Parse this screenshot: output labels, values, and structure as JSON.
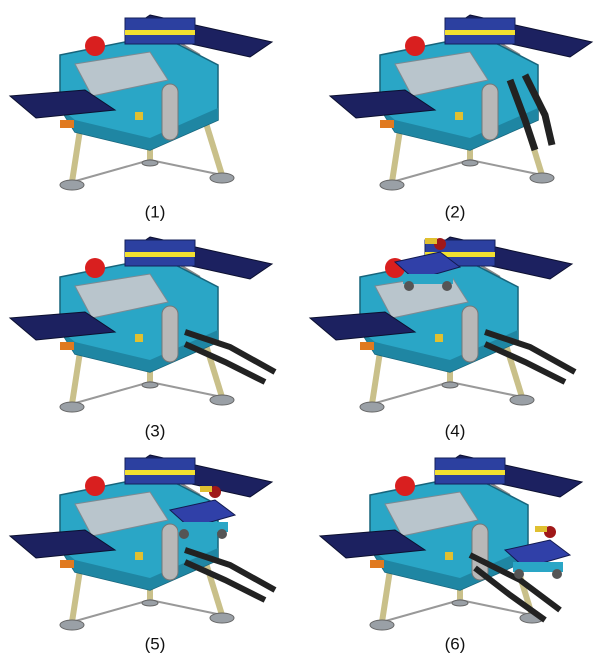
{
  "figure": {
    "panels": [
      {
        "label": "(1)"
      },
      {
        "label": "(2)"
      },
      {
        "label": "(3)"
      },
      {
        "label": "(4)"
      },
      {
        "label": "(5)"
      },
      {
        "label": "(6)"
      }
    ]
  }
}
